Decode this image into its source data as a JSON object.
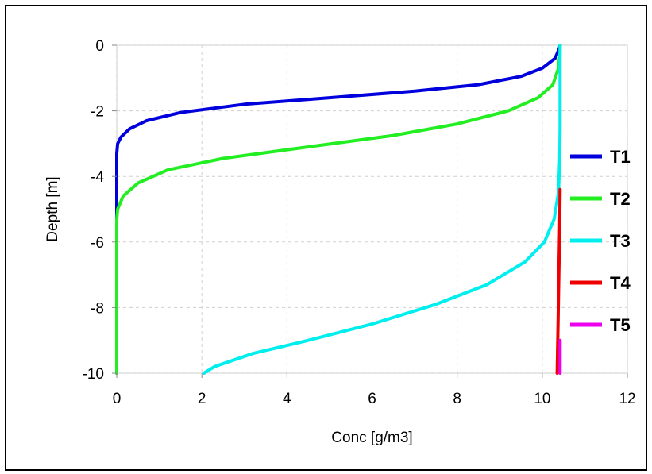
{
  "chart_data": {
    "type": "line",
    "title": "",
    "xlabel": "Conc [g/m3]",
    "ylabel": "Depth [m]",
    "xlim": [
      0,
      12
    ],
    "ylim": [
      -10,
      0
    ],
    "xticks": [
      0,
      2,
      4,
      6,
      8,
      10,
      12
    ],
    "yticks": [
      0,
      -2,
      -4,
      -6,
      -8,
      -10
    ],
    "grid": true,
    "legend_position": "right",
    "series": [
      {
        "name": "T1",
        "color": "#0000dd",
        "points": [
          [
            0,
            -10
          ],
          [
            0,
            -3.3
          ],
          [
            0.02,
            -3.0
          ],
          [
            0.1,
            -2.8
          ],
          [
            0.3,
            -2.55
          ],
          [
            0.7,
            -2.3
          ],
          [
            1.5,
            -2.05
          ],
          [
            3,
            -1.8
          ],
          [
            5,
            -1.6
          ],
          [
            7,
            -1.4
          ],
          [
            8.5,
            -1.2
          ],
          [
            9.5,
            -0.95
          ],
          [
            10,
            -0.7
          ],
          [
            10.3,
            -0.4
          ],
          [
            10.4,
            -0.1
          ],
          [
            10.42,
            0
          ]
        ]
      },
      {
        "name": "T2",
        "color": "#22ee22",
        "points": [
          [
            0,
            -10
          ],
          [
            0,
            -5.3
          ],
          [
            0.02,
            -5.0
          ],
          [
            0.15,
            -4.6
          ],
          [
            0.5,
            -4.2
          ],
          [
            1.2,
            -3.8
          ],
          [
            2.5,
            -3.45
          ],
          [
            4.5,
            -3.1
          ],
          [
            6.5,
            -2.75
          ],
          [
            8,
            -2.4
          ],
          [
            9.2,
            -2.0
          ],
          [
            9.9,
            -1.6
          ],
          [
            10.25,
            -1.2
          ],
          [
            10.38,
            -0.7
          ],
          [
            10.42,
            -0.2
          ],
          [
            10.42,
            0
          ]
        ]
      },
      {
        "name": "T3",
        "color": "#00eeee",
        "points": [
          [
            2.05,
            -10
          ],
          [
            2.3,
            -9.8
          ],
          [
            3.2,
            -9.4
          ],
          [
            4.5,
            -9.0
          ],
          [
            6,
            -8.5
          ],
          [
            7.5,
            -7.9
          ],
          [
            8.7,
            -7.3
          ],
          [
            9.6,
            -6.6
          ],
          [
            10.05,
            -6.0
          ],
          [
            10.28,
            -5.3
          ],
          [
            10.38,
            -4.5
          ],
          [
            10.41,
            -3.5
          ],
          [
            10.42,
            -2.5
          ],
          [
            10.42,
            -1.5
          ],
          [
            10.42,
            0
          ]
        ]
      },
      {
        "name": "T4",
        "color": "#ee0000",
        "points": [
          [
            10.35,
            -10
          ],
          [
            10.37,
            -8.5
          ],
          [
            10.39,
            -7
          ],
          [
            10.41,
            -5.5
          ],
          [
            10.42,
            -4.4
          ]
        ]
      },
      {
        "name": "T5",
        "color": "#ee00ee",
        "points": [
          [
            10.42,
            -10
          ],
          [
            10.42,
            -9.0
          ]
        ]
      }
    ]
  }
}
